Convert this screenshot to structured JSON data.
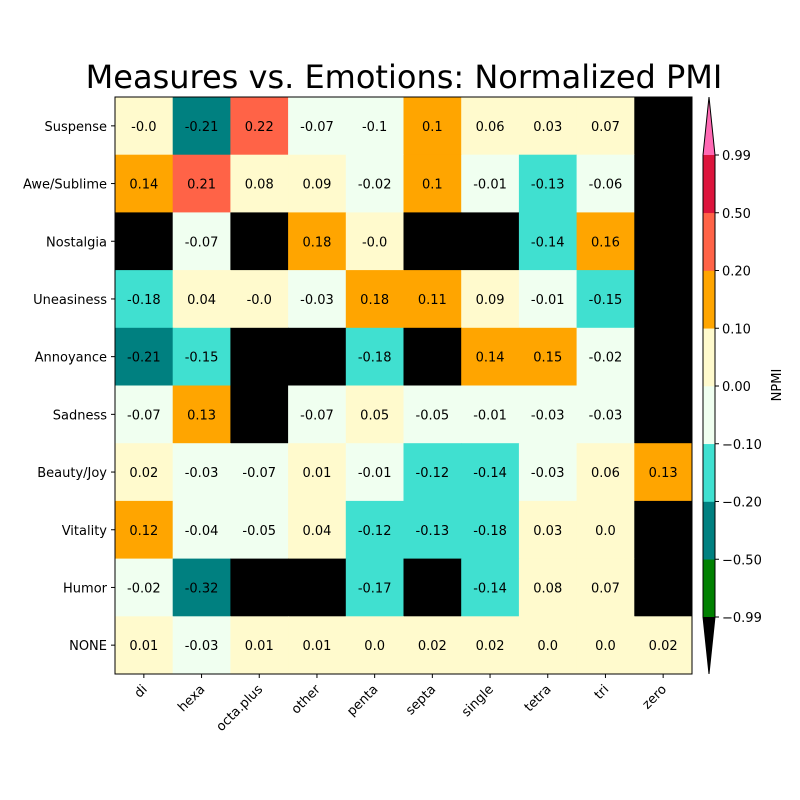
{
  "chart_data": {
    "type": "heatmap",
    "title": "Measures vs. Emotions: Normalized PMI",
    "x_categories": [
      "di",
      "hexa",
      "octa.plus",
      "other",
      "penta",
      "septa",
      "single",
      "tetra",
      "tri",
      "zero"
    ],
    "y_categories": [
      "Suspense",
      "Awe/Sublime",
      "Nostalgia",
      "Uneasiness",
      "Annoyance",
      "Sadness",
      "Beauty/Joy",
      "Vitality",
      "Humor",
      "NONE"
    ],
    "values": [
      [
        -0.0,
        -0.21,
        0.22,
        -0.07,
        -0.1,
        0.1,
        0.06,
        0.03,
        0.07,
        null
      ],
      [
        0.14,
        0.21,
        0.08,
        0.09,
        -0.02,
        0.1,
        -0.01,
        -0.13,
        -0.06,
        null
      ],
      [
        null,
        -0.07,
        null,
        0.18,
        -0.0,
        null,
        null,
        -0.14,
        0.16,
        null
      ],
      [
        -0.18,
        0.04,
        -0.0,
        -0.03,
        0.18,
        0.11,
        0.09,
        -0.01,
        -0.15,
        null
      ],
      [
        -0.21,
        -0.15,
        null,
        null,
        -0.18,
        null,
        0.14,
        0.15,
        -0.02,
        null
      ],
      [
        -0.07,
        0.13,
        null,
        -0.07,
        0.05,
        -0.05,
        -0.01,
        -0.03,
        -0.03,
        null
      ],
      [
        0.02,
        -0.03,
        -0.07,
        0.01,
        -0.01,
        -0.12,
        -0.14,
        -0.03,
        0.06,
        0.13
      ],
      [
        0.12,
        -0.04,
        -0.05,
        0.04,
        -0.12,
        -0.13,
        -0.18,
        0.03,
        0.0,
        null
      ],
      [
        -0.02,
        -0.32,
        null,
        null,
        -0.17,
        null,
        -0.14,
        0.08,
        0.07,
        null
      ],
      [
        0.01,
        -0.03,
        0.01,
        0.01,
        0.0,
        0.02,
        0.02,
        0.0,
        0.0,
        0.02
      ]
    ],
    "value_labels": [
      [
        "-0.0",
        "-0.21",
        "0.22",
        "-0.07",
        "-0.1",
        "0.1",
        "0.06",
        "0.03",
        "0.07",
        ""
      ],
      [
        "0.14",
        "0.21",
        "0.08",
        "0.09",
        "-0.02",
        "0.1",
        "-0.01",
        "-0.13",
        "-0.06",
        ""
      ],
      [
        "",
        "-0.07",
        "",
        "0.18",
        "-0.0",
        "",
        "",
        "-0.14",
        "0.16",
        ""
      ],
      [
        "-0.18",
        "0.04",
        "-0.0",
        "-0.03",
        "0.18",
        "0.11",
        "0.09",
        "-0.01",
        "-0.15",
        ""
      ],
      [
        "-0.21",
        "-0.15",
        "",
        "",
        "-0.18",
        "",
        "0.14",
        "0.15",
        "-0.02",
        ""
      ],
      [
        "-0.07",
        "0.13",
        "",
        "-0.07",
        "0.05",
        "-0.05",
        "-0.01",
        "-0.03",
        "-0.03",
        ""
      ],
      [
        "0.02",
        "-0.03",
        "-0.07",
        "0.01",
        "-0.01",
        "-0.12",
        "-0.14",
        "-0.03",
        "0.06",
        "0.13"
      ],
      [
        "0.12",
        "-0.04",
        "-0.05",
        "0.04",
        "-0.12",
        "-0.13",
        "-0.18",
        "0.03",
        "0.0",
        ""
      ],
      [
        "-0.02",
        "-0.32",
        "",
        "",
        "-0.17",
        "",
        "-0.14",
        "0.08",
        "0.07",
        ""
      ],
      [
        "0.01",
        "-0.03",
        "0.01",
        "0.01",
        "0.0",
        "0.02",
        "0.02",
        "0.0",
        "0.0",
        "0.02"
      ]
    ],
    "missing_color": "#000000",
    "colorbar": {
      "label": "NPMI",
      "boundaries": [
        -0.99,
        -0.5,
        -0.2,
        -0.1,
        0.0,
        0.1,
        0.2,
        0.5,
        0.99
      ],
      "tick_labels": [
        "−0.99",
        "−0.50",
        "−0.20",
        "−0.10",
        "0.00",
        "0.10",
        "0.20",
        "0.50",
        "0.99"
      ],
      "colors": [
        "#008000",
        "#008080",
        "#40e0d0",
        "#f0fff0",
        "#fffacd",
        "#ffa500",
        "#ff6347",
        "#dc143c"
      ],
      "under_color": "#000000",
      "over_color": "#ff69b4",
      "extend": "both"
    }
  }
}
